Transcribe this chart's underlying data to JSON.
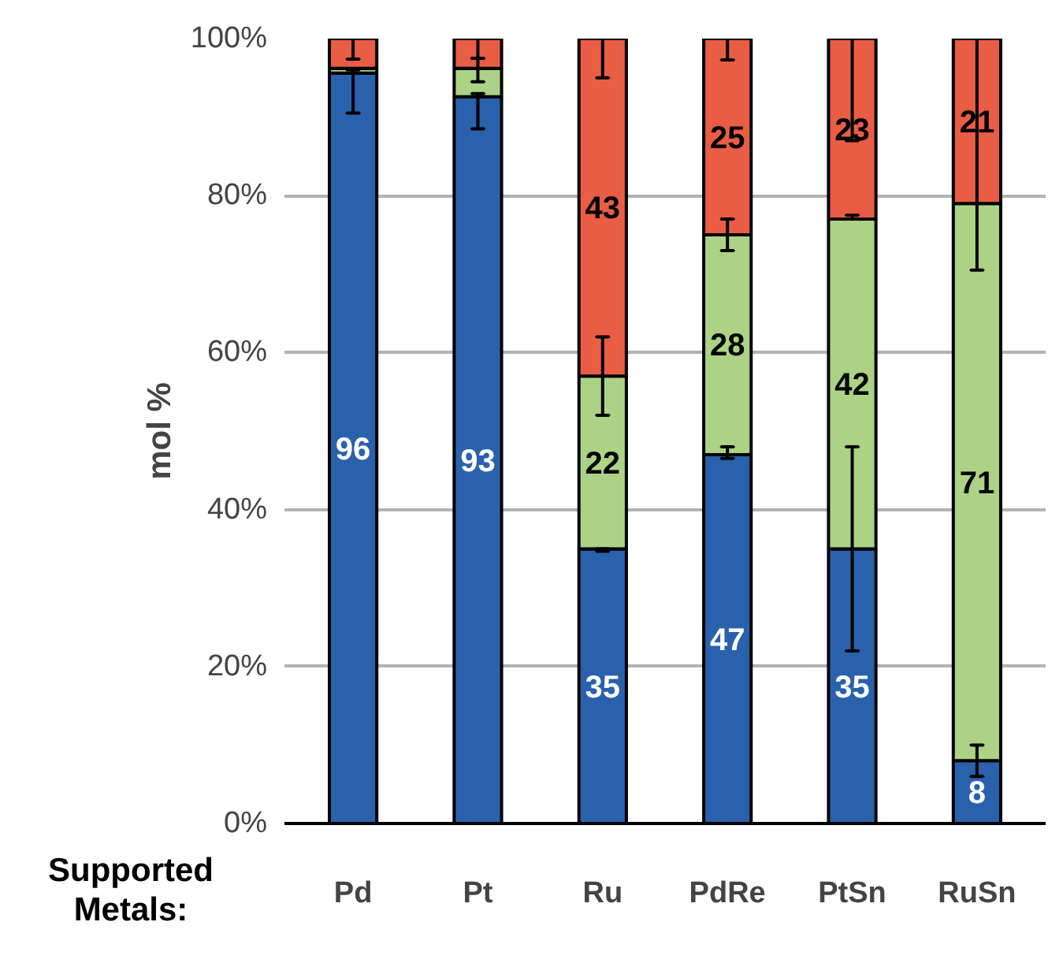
{
  "chart_data": {
    "type": "bar",
    "stacked": true,
    "xlabel": "Supported Metals:",
    "ylabel": "mol %",
    "categories": [
      "Pd",
      "Pt",
      "Ru",
      "PdRe",
      "PtSn",
      "RuSn"
    ],
    "series": [
      {
        "color": "#2a61ac",
        "values": [
          95.6,
          92.6,
          35,
          47,
          35,
          8
        ],
        "value_labels": [
          "96",
          "93",
          "35",
          "47",
          "35",
          "8"
        ],
        "errors": [
          [
            90.5,
            96
          ],
          [
            88.5,
            93
          ],
          [
            34.7,
            35
          ],
          [
            46.5,
            48
          ],
          [
            22,
            48
          ],
          [
            6,
            10
          ]
        ]
      },
      {
        "color": "#acd385",
        "values": [
          0.6,
          3.6,
          22,
          28,
          42,
          71
        ],
        "value_labels": [
          null,
          null,
          "22",
          "28",
          "42",
          "71"
        ],
        "errors": [
          null,
          [
            94.5,
            97.5
          ],
          [
            52,
            62
          ],
          [
            73,
            77
          ],
          [
            77,
            77.5
          ],
          [
            70.5,
            100
          ]
        ]
      },
      {
        "color": "#e95d45",
        "values": [
          3.8,
          3.8,
          43,
          25,
          23,
          21
        ],
        "value_labels": [
          null,
          null,
          "43",
          "25",
          "23",
          "21"
        ],
        "errors": [
          [
            97.4,
            100
          ],
          [
            97.5,
            100
          ],
          [
            95,
            100
          ],
          [
            97.3,
            100
          ],
          [
            87,
            100
          ],
          null
        ]
      }
    ],
    "ylim": [
      0,
      100
    ],
    "yticks": [
      {
        "value": 0,
        "label": "0%"
      },
      {
        "value": 20,
        "label": "20%"
      },
      {
        "value": 40,
        "label": "40%"
      },
      {
        "value": 60,
        "label": "60%"
      },
      {
        "value": 80,
        "label": "80%"
      },
      {
        "value": 100,
        "label": "100%"
      }
    ],
    "grid": "y"
  }
}
